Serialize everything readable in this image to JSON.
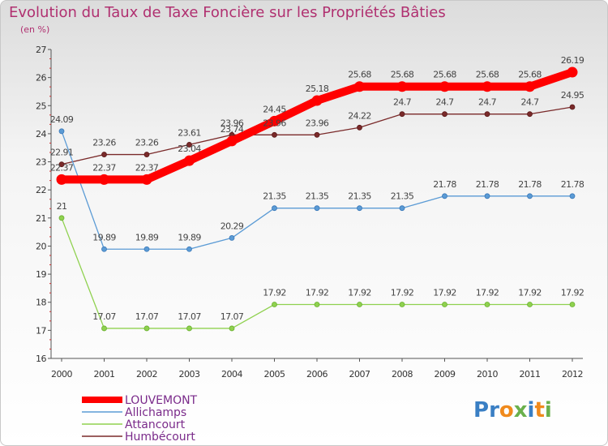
{
  "title": "Evolution du Taux de Taxe Foncière sur les Propriétés Bâties",
  "subtitle": "(en %)",
  "logo": {
    "text": "Proxiti",
    "letters": [
      "P",
      "r",
      "o",
      "x",
      "i",
      "t",
      "i"
    ],
    "colors": [
      "#3a7fc4",
      "#3a7fc4",
      "#f08a1c",
      "#6ab04c",
      "#3a7fc4",
      "#f08a1c",
      "#6ab04c"
    ]
  },
  "chart_data": {
    "type": "line",
    "title": "Evolution du Taux de Taxe Foncière sur les Propriétés Bâties",
    "ylabel": "(en %)",
    "xlabel": "",
    "x": [
      "2000",
      "2001",
      "2002",
      "2003",
      "2004",
      "2005",
      "2006",
      "2007",
      "2008",
      "2009",
      "2010",
      "2011",
      "2012"
    ],
    "ylim": [
      16,
      27
    ],
    "yticks": [
      "16",
      "17",
      "18",
      "19",
      "20",
      "21",
      "22",
      "23",
      "24",
      "25",
      "26",
      "27"
    ],
    "grid": false,
    "legend": "bottom-left",
    "series": [
      {
        "name": "LOUVEMONT",
        "color": "#ff0000",
        "values": [
          22.37,
          22.37,
          22.37,
          23.04,
          23.74,
          24.45,
          25.18,
          25.68,
          25.68,
          25.68,
          25.68,
          25.68,
          26.19
        ],
        "labels": [
          "22.37",
          "22.37",
          "22.37",
          "23.04",
          "23.74",
          "24.45",
          "25.18",
          "25.68",
          "25.68",
          "25.68",
          "25.68",
          "25.68",
          "26.19"
        ]
      },
      {
        "name": "Allichamps",
        "color": "#5b9bd5",
        "values": [
          24.09,
          19.89,
          19.89,
          19.89,
          20.29,
          21.35,
          21.35,
          21.35,
          21.35,
          21.78,
          21.78,
          21.78,
          21.78
        ],
        "labels": [
          "24.09",
          "19.89",
          "19.89",
          "19.89",
          "20.29",
          "21.35",
          "21.35",
          "21.35",
          "21.35",
          "21.78",
          "21.78",
          "21.78",
          "21.78"
        ]
      },
      {
        "name": "Attancourt",
        "color": "#8fd14f",
        "values": [
          21,
          17.07,
          17.07,
          17.07,
          17.07,
          17.92,
          17.92,
          17.92,
          17.92,
          17.92,
          17.92,
          17.92,
          17.92
        ],
        "labels": [
          "21",
          "17.07",
          "17.07",
          "17.07",
          "17.07",
          "17.92",
          "17.92",
          "17.92",
          "17.92",
          "17.92",
          "17.92",
          "17.92",
          "17.92"
        ]
      },
      {
        "name": "Humbécourt",
        "color": "#7a2a2a",
        "values": [
          22.91,
          23.26,
          23.26,
          23.61,
          23.96,
          23.96,
          23.96,
          24.22,
          24.7,
          24.7,
          24.7,
          24.7,
          24.95
        ],
        "labels": [
          "22.91",
          "23.26",
          "23.26",
          "23.61",
          "23.96",
          "23.96",
          "23.96",
          "24.22",
          "24.7",
          "24.7",
          "24.7",
          "24.7",
          "24.95"
        ]
      }
    ]
  }
}
